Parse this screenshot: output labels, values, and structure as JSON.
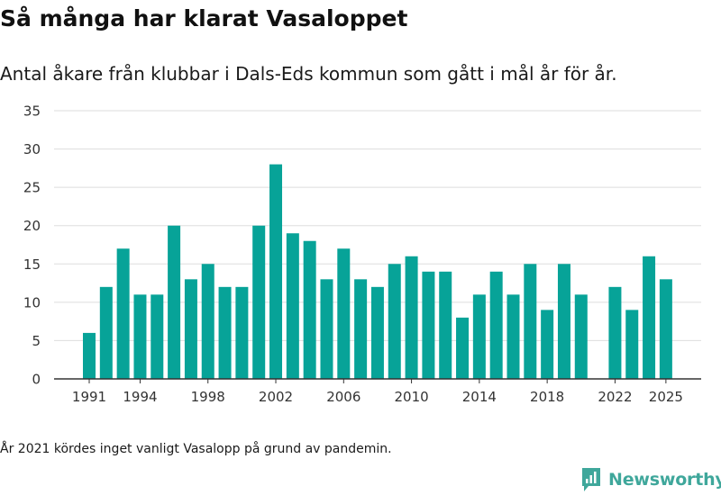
{
  "header": {
    "title": "Så många har klarat Vasaloppet",
    "subtitle": "Antal åkare från klubbar i Dals-Eds kommun som gått i mål år för år."
  },
  "footnote": "År 2021 kördes inget vanligt Vasalopp på grund av pandemin.",
  "brand": {
    "name": "Newsworthy",
    "color": "#3fa79b"
  },
  "colors": {
    "bar": "#07a398",
    "grid": "#dddddd",
    "axis": "#333333"
  },
  "chart_data": {
    "type": "bar",
    "title": "Så många har klarat Vasaloppet",
    "xlabel": "",
    "ylabel": "",
    "ylim": [
      0,
      35
    ],
    "yticks": [
      0,
      5,
      10,
      15,
      20,
      25,
      30,
      35
    ],
    "xticks": [
      1991,
      1994,
      1998,
      2002,
      2006,
      2010,
      2014,
      2018,
      2022,
      2025
    ],
    "grid": true,
    "categories": [
      1991,
      1992,
      1993,
      1994,
      1995,
      1996,
      1997,
      1998,
      1999,
      2000,
      2001,
      2002,
      2003,
      2004,
      2005,
      2006,
      2007,
      2008,
      2009,
      2010,
      2011,
      2012,
      2013,
      2014,
      2015,
      2016,
      2017,
      2018,
      2019,
      2020,
      2021,
      2022,
      2023,
      2024,
      2025
    ],
    "values": [
      6,
      12,
      17,
      11,
      11,
      20,
      13,
      15,
      12,
      12,
      20,
      28,
      19,
      18,
      13,
      17,
      13,
      12,
      15,
      16,
      14,
      14,
      8,
      11,
      14,
      11,
      15,
      9,
      15,
      11,
      null,
      12,
      9,
      16,
      13
    ]
  }
}
